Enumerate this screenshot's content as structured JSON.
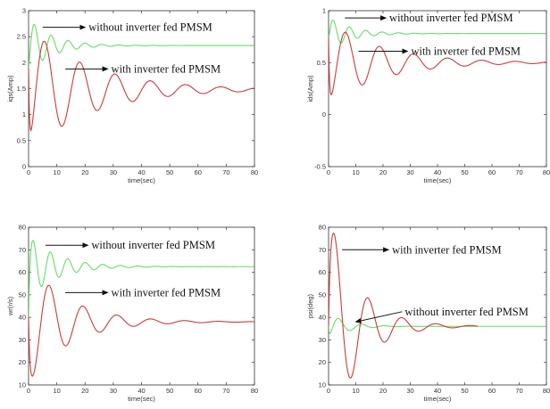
{
  "chart_data": [
    {
      "type": "line",
      "xlabel": "time(sec)",
      "ylabel": "iqs(Amp)",
      "xlim": [
        0,
        80
      ],
      "ylim": [
        0,
        3
      ],
      "xticks": [
        "0",
        "10",
        "20",
        "30",
        "40",
        "50",
        "60",
        "70",
        "80"
      ],
      "yticks": [
        "0",
        "0.5",
        "1",
        "1.5",
        "2",
        "2.5",
        "3"
      ],
      "grid": false,
      "series": [
        {
          "name": "without inverter fed PMSM",
          "color": "#66dd66",
          "y0": 1.9,
          "steady": 2.33,
          "amplitude": 0.52,
          "damping": 0.12,
          "period": 6.0,
          "phase": 0.6,
          "osc_start": 0
        },
        {
          "name": "with inverter fed PMSM",
          "color": "#cc3b3b",
          "y0": 1.9,
          "steady": 1.48,
          "amplitude": 1.2,
          "damping": 0.045,
          "period": 12.5,
          "phase": 1.3,
          "osc_start": 0
        }
      ],
      "annotations": [
        {
          "text": "without inverter fed PMSM",
          "from": [
            5,
            2.68
          ],
          "to": [
            20,
            2.68
          ]
        },
        {
          "text": "with inverter fed PMSM",
          "from": [
            13,
            1.88
          ],
          "to": [
            28,
            1.88
          ]
        }
      ]
    },
    {
      "type": "line",
      "xlabel": "time(sec)",
      "ylabel": "ids(Amp)",
      "xlim": [
        0,
        80
      ],
      "ylim": [
        -0.5,
        1
      ],
      "xticks": [
        "0",
        "10",
        "20",
        "30",
        "40",
        "50",
        "60",
        "70",
        "80"
      ],
      "yticks": [
        "-0.5",
        "0",
        "0.5",
        "1"
      ],
      "grid": false,
      "series": [
        {
          "name": "without inverter fed PMSM",
          "color": "#66dd66",
          "y0": 0.75,
          "steady": 0.78,
          "amplitude": 0.16,
          "damping": 0.12,
          "period": 6.0,
          "phase": 0.2,
          "osc_start": 0
        },
        {
          "name": "with inverter fed PMSM",
          "color": "#cc3b3b",
          "y0": 0.75,
          "steady": 0.5,
          "amplitude": 0.4,
          "damping": 0.05,
          "period": 12.5,
          "phase": 1.6,
          "osc_start": 0
        }
      ],
      "annotations": [
        {
          "text": "without inverter fed PMSM",
          "from": [
            6,
            0.93
          ],
          "to": [
            21,
            0.93
          ]
        },
        {
          "text": "with inverter fed PMSM",
          "from": [
            11,
            0.61
          ],
          "to": [
            29,
            0.61
          ]
        }
      ]
    },
    {
      "type": "line",
      "xlabel": "time(sec)",
      "ylabel": "wr(r/s)",
      "xlim": [
        0,
        80
      ],
      "ylim": [
        10,
        80
      ],
      "xticks": [
        "0",
        "10",
        "20",
        "30",
        "40",
        "50",
        "60",
        "70",
        "80"
      ],
      "yticks": [
        "10",
        "20",
        "30",
        "40",
        "50",
        "60",
        "70",
        "80"
      ],
      "grid": false,
      "series": [
        {
          "name": "without inverter fed PMSM",
          "color": "#66dd66",
          "y0": 40,
          "steady": 62.5,
          "amplitude": 14,
          "damping": 0.1,
          "period": 6.2,
          "phase": 0.0,
          "osc_start": 0
        },
        {
          "name": "with inverter fed PMSM",
          "color": "#cc3b3b",
          "y0": 40,
          "steady": 38,
          "amplitude": 27,
          "damping": 0.07,
          "period": 12.0,
          "phase": 2.3,
          "osc_start": 0
        }
      ],
      "annotations": [
        {
          "text": "without inverter fed PMSM",
          "from": [
            6,
            72
          ],
          "to": [
            21,
            72
          ]
        },
        {
          "text": "with inverter fed PMSM",
          "from": [
            13,
            51
          ],
          "to": [
            28,
            51
          ]
        }
      ]
    },
    {
      "type": "line",
      "xlabel": "time(sec)",
      "ylabel": "psi(deg)",
      "xlim": [
        0,
        80
      ],
      "ylim": [
        10,
        80
      ],
      "xticks": [
        "0",
        "10",
        "20",
        "30",
        "40",
        "50",
        "60",
        "70",
        "80"
      ],
      "yticks": [
        "10",
        "20",
        "30",
        "40",
        "50",
        "60",
        "70",
        "80"
      ],
      "grid": false,
      "series": [
        {
          "name": "without inverter fed PMSM",
          "color": "#66dd66",
          "y0": 36,
          "steady": 36,
          "amplitude": 6,
          "damping": 0.15,
          "period": 8.5,
          "phase": 1.2,
          "osc_start": 0
        },
        {
          "name": "with inverter fed PMSM",
          "color": "#cc3b3b",
          "y0": 36,
          "steady": 36,
          "amplitude": 50,
          "damping": 0.095,
          "period": 12.5,
          "phase": -0.5,
          "osc_start": 0,
          "end": 55
        }
      ],
      "annotations": [
        {
          "text": "with inverter fed PMSM",
          "from": [
            5,
            70
          ],
          "to": [
            22,
            70
          ]
        },
        {
          "text": "without inverter fed PMSM",
          "from": [
            27,
            42.5
          ],
          "to": [
            10,
            38
          ]
        }
      ]
    }
  ]
}
